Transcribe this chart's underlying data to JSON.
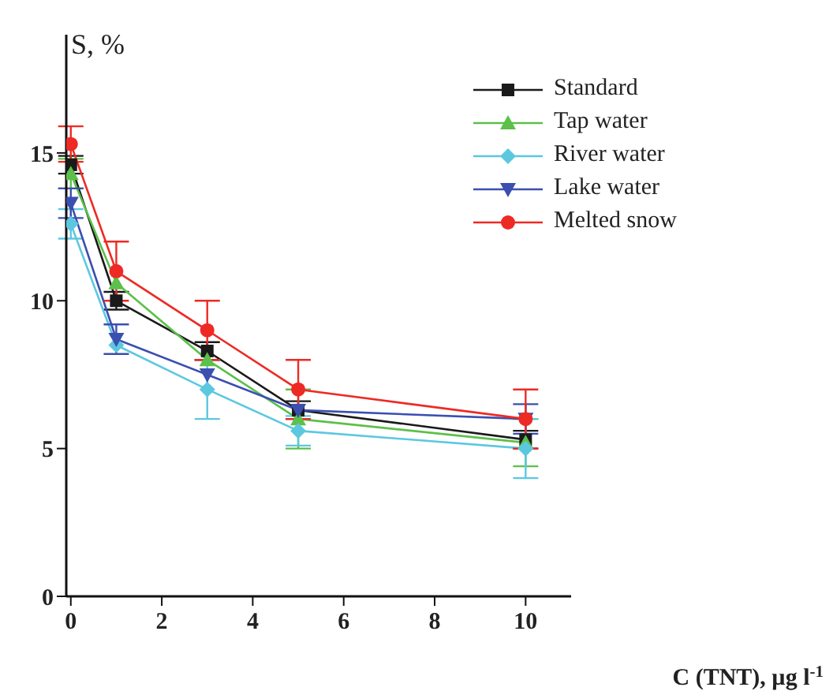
{
  "chart_data": {
    "type": "line",
    "xlabel": "C (TNT), µg l$^{-1}$",
    "ylabel": "S, %",
    "x": [
      0,
      1,
      3,
      5,
      10
    ],
    "xlim": [
      -0.1,
      11
    ],
    "xticks": [
      0,
      2,
      4,
      6,
      8,
      10
    ],
    "ylim": [
      0,
      19
    ],
    "yticks": [
      0,
      5,
      10,
      15
    ],
    "grid": false,
    "legend": "top right",
    "line_style": "solid",
    "series": [
      {
        "name": "Standard",
        "color": "#1a1a1a",
        "marker": "square",
        "values": [
          14.6,
          10.0,
          8.3,
          6.3,
          5.3
        ],
        "errors": [
          0.3,
          0.3,
          0.3,
          0.3,
          0.3
        ]
      },
      {
        "name": "Tap water",
        "color": "#5cc04a",
        "marker": "triangle",
        "values": [
          14.3,
          10.6,
          8.0,
          6.0,
          5.2
        ],
        "errors": [
          0.5,
          null,
          null,
          1.0,
          0.8
        ]
      },
      {
        "name": "River water",
        "color": "#5cc8e0",
        "marker": "diamond",
        "values": [
          12.6,
          8.5,
          7.0,
          5.6,
          5.0
        ],
        "errors": [
          0.5,
          null,
          1.0,
          0.5,
          1.0
        ]
      },
      {
        "name": "Lake water",
        "color": "#3a4fb0",
        "marker": "triangle-down",
        "values": [
          13.3,
          8.7,
          7.5,
          6.3,
          6.0
        ],
        "errors": [
          0.5,
          0.5,
          null,
          null,
          0.5
        ]
      },
      {
        "name": "Melted snow",
        "color": "#ee2a24",
        "marker": "circle",
        "values": [
          15.3,
          11.0,
          9.0,
          7.0,
          6.0
        ],
        "errors": [
          0.6,
          1.0,
          1.0,
          1.0,
          1.0
        ]
      }
    ]
  }
}
